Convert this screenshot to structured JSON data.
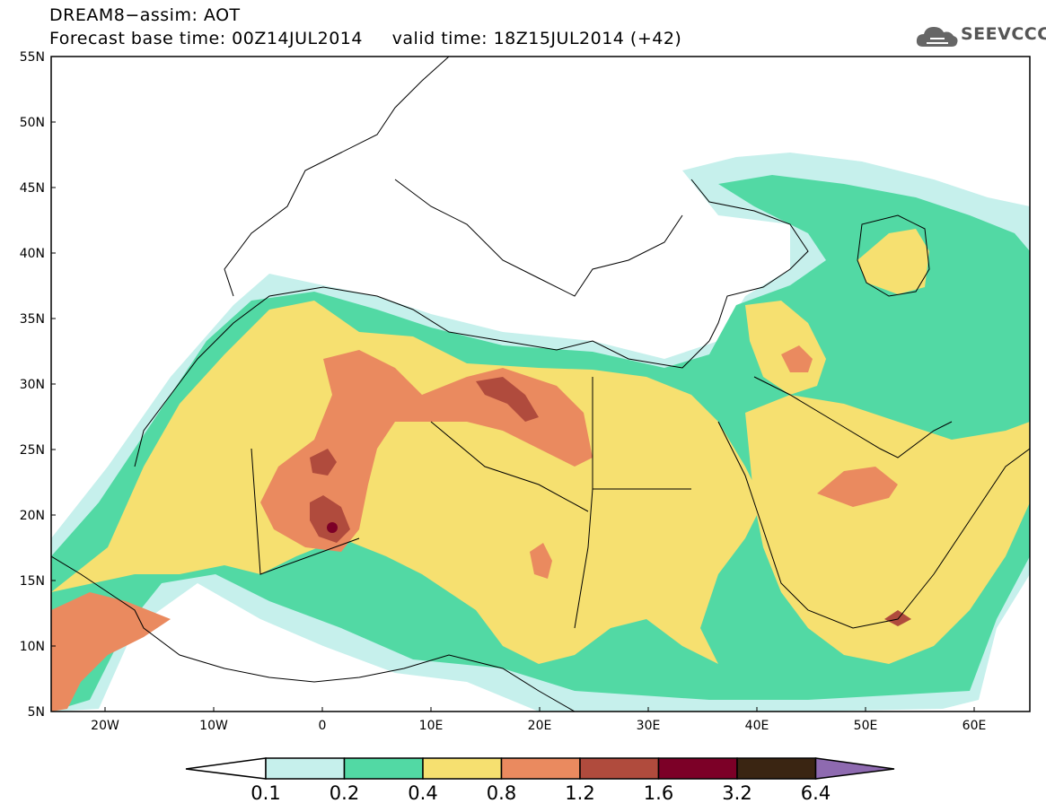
{
  "title": {
    "line1": "DREAM8−assim: AOT",
    "line2": "Forecast base time: 00Z14JUL2014     valid time: 18Z15JUL2014 (+42)"
  },
  "logo": {
    "text": "SEEVCCC",
    "icon": "cloud-icon"
  },
  "map": {
    "lat_range": [
      5,
      55
    ],
    "lon_range": [
      -25,
      65
    ],
    "lat_ticks": [
      "5N",
      "10N",
      "15N",
      "20N",
      "25N",
      "30N",
      "35N",
      "40N",
      "45N",
      "50N",
      "55N"
    ],
    "lon_ticks": [
      "20W",
      "10W",
      "0",
      "10E",
      "20E",
      "30E",
      "40E",
      "50E",
      "60E"
    ]
  },
  "colorbar": {
    "levels": [
      "0.1",
      "0.2",
      "0.4",
      "0.8",
      "1.2",
      "1.6",
      "3.2",
      "6.4"
    ],
    "colors": [
      "#ffffff",
      "#c6f0ec",
      "#52d9a4",
      "#f6e070",
      "#ea8a5f",
      "#b04b3d",
      "#7c0027",
      "#3a2512",
      "#8e6ab0"
    ]
  }
}
